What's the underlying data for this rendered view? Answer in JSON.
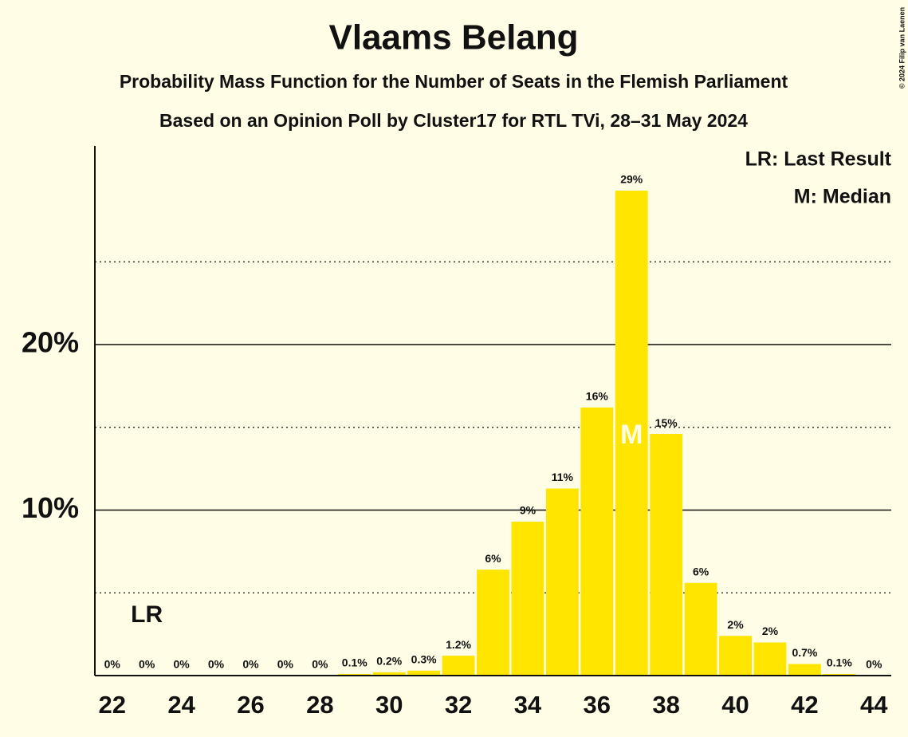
{
  "chart_data": {
    "type": "bar",
    "title": "Vlaams Belang",
    "subtitle": [
      "Probability Mass Function for the Number of Seats in the Flemish Parliament",
      "Based on an Opinion Poll by Cluster17 for RTL TVi, 28–31 May 2024"
    ],
    "x": [
      22,
      23,
      24,
      25,
      26,
      27,
      28,
      29,
      30,
      31,
      32,
      33,
      34,
      35,
      36,
      37,
      38,
      39,
      40,
      41,
      42,
      43,
      44
    ],
    "values": [
      0,
      0,
      0,
      0,
      0,
      0,
      0,
      0.1,
      0.2,
      0.3,
      1.2,
      6.4,
      9.3,
      11.3,
      16.2,
      29.3,
      14.6,
      5.6,
      2.4,
      2.0,
      0.7,
      0.1,
      0
    ],
    "value_labels": [
      "0%",
      "0%",
      "0%",
      "0%",
      "0%",
      "0%",
      "0%",
      "0.1%",
      "0.2%",
      "0.3%",
      "1.2%",
      "6%",
      "9%",
      "11%",
      "16%",
      "29%",
      "15%",
      "6%",
      "2%",
      "2%",
      "0.7%",
      "0.1%",
      "0%"
    ],
    "color": "#ffe500",
    "xlim": [
      21.5,
      44.5
    ],
    "xticks": [
      22,
      24,
      26,
      28,
      30,
      32,
      34,
      36,
      38,
      40,
      42,
      44
    ],
    "ylim": [
      0,
      32
    ],
    "yticks": [
      {
        "value": 10,
        "label": "10%"
      },
      {
        "value": 20,
        "label": "20%"
      }
    ],
    "yminorticks": [
      5,
      15,
      25
    ],
    "grid": true,
    "annotations": [
      {
        "text": "LR",
        "x": 23
      },
      {
        "text": "M",
        "x": 37
      }
    ],
    "legend": [
      "LR: Last Result",
      "M: Median"
    ],
    "legend_position": "upper right",
    "copyright": "© 2024 Filip van Laenen"
  }
}
